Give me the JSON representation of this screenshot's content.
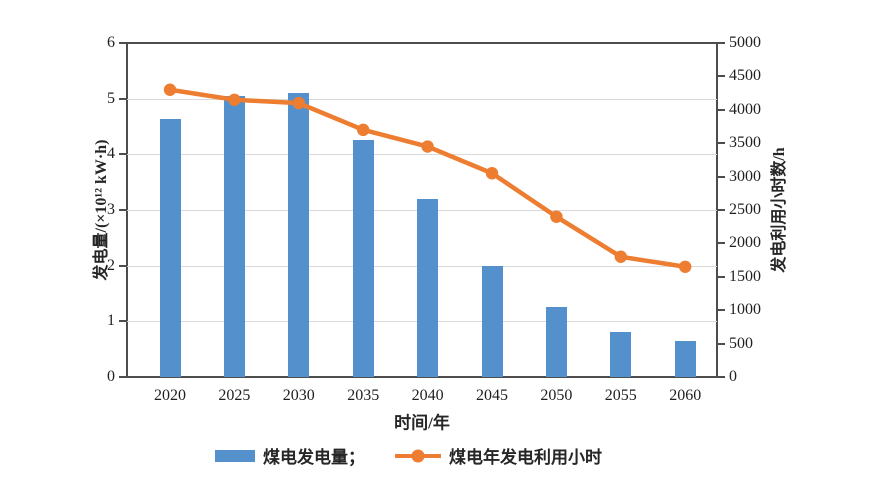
{
  "chart_data": {
    "type": "bar",
    "subtype": "combo-bar-line",
    "title": "",
    "categories": [
      "2020",
      "2025",
      "2030",
      "2035",
      "2040",
      "2045",
      "2050",
      "2055",
      "2060"
    ],
    "series": [
      {
        "name": "煤电发电量",
        "type": "bar",
        "axis": "left",
        "color": "#5490cb",
        "values": [
          4.63,
          5.05,
          5.1,
          4.25,
          3.2,
          2.0,
          1.25,
          0.8,
          0.65
        ]
      },
      {
        "name": "煤电年发电利用小时",
        "type": "line",
        "axis": "right",
        "color": "#ed7d31",
        "values": [
          4300,
          4150,
          4100,
          3700,
          3450,
          3050,
          2400,
          1800,
          1650
        ]
      }
    ],
    "left_axis": {
      "label": "发电量/(×10¹² kW·h)",
      "min": 0,
      "max": 6,
      "step": 1,
      "ticks": [
        "0",
        "1",
        "2",
        "3",
        "4",
        "5",
        "6"
      ]
    },
    "right_axis": {
      "label": "发电利用小时数/h",
      "min": 0,
      "max": 5000,
      "step": 500,
      "ticks": [
        "0",
        "500",
        "1000",
        "1500",
        "2000",
        "2500",
        "3000",
        "3500",
        "4000",
        "4500",
        "5000"
      ]
    },
    "x_axis": {
      "label": "时间/年"
    },
    "gridline_values": [
      1,
      2,
      3,
      4,
      5
    ],
    "grid": true,
    "legend": {
      "position": "bottom",
      "items": [
        {
          "label": "煤电发电量；",
          "marker": "bar-swatch"
        },
        {
          "label": "煤电年发电利用小时",
          "marker": "line-dot"
        }
      ]
    },
    "colors": {
      "bar": "#5490cb",
      "line": "#ed7d31",
      "axis": "#4d4d4d",
      "grid": "#d9d9d9",
      "text": "#1f1f1f"
    }
  }
}
